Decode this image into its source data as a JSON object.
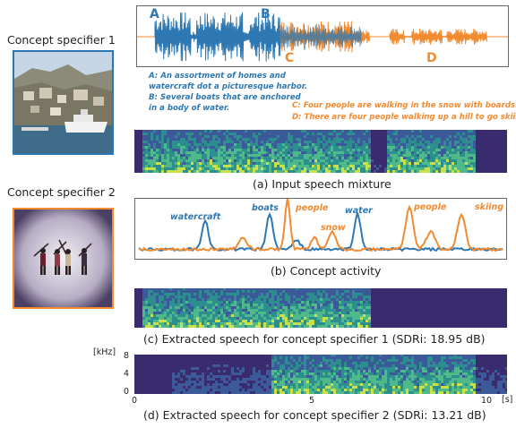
{
  "colors": {
    "blue": "#2d78b3",
    "orange": "#f28a30"
  },
  "specifiers": {
    "s1": {
      "label": "Concept specifier 1"
    },
    "s2": {
      "label": "Concept specifier 2"
    }
  },
  "waveform": {
    "markers": {
      "A": "A",
      "B": "B",
      "C": "C",
      "D": "D"
    }
  },
  "sentences": {
    "a": "A: An assortment of homes and\nwatercraft dot a picturesque harbor.",
    "b": "B: Several boats that are anchored\nin a body of water.",
    "c": "C: Four people are walking in the snow with boards.",
    "d": "D: There are four people walking up a hill to go skiing."
  },
  "captions": {
    "a": "(a) Input speech mixture",
    "b": "(b) Concept activity",
    "c": "(c) Extracted speech for concept specifier 1 (SDRi: 18.95 dB)",
    "d": "(d) Extracted speech for concept specifier 2 (SDRi: 13.21 dB)"
  },
  "concept_words": {
    "watercraft": "watercraft",
    "boats": "boats",
    "people1": "people",
    "snow": "snow",
    "water": "water",
    "people2": "people",
    "skiing": "skiing"
  },
  "axes": {
    "y_unit": "[kHz]",
    "y_ticks": [
      "8",
      "4",
      "0"
    ],
    "x_ticks": [
      "0",
      "5",
      "10"
    ],
    "x_unit": "[s]"
  }
}
